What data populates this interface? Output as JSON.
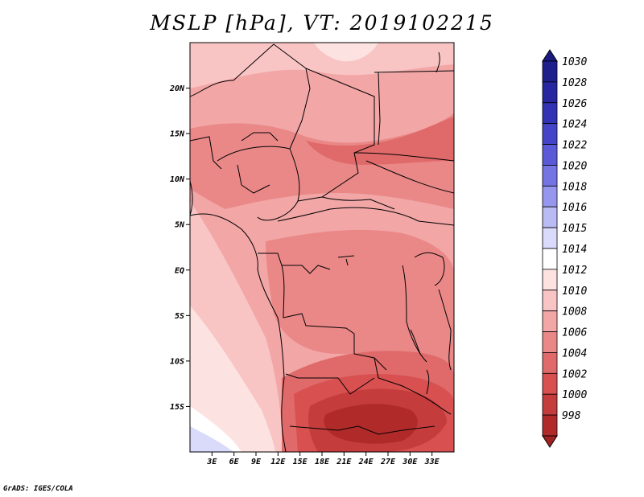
{
  "title": "MSLP [hPa], VT: 2019102215",
  "credit": "GrADS: IGES/COLA",
  "map": {
    "lon_range": [
      0,
      36
    ],
    "lat_range": [
      -20,
      25
    ],
    "lat_ticks": [
      {
        "value": 20,
        "label": "20N"
      },
      {
        "value": 15,
        "label": "15N"
      },
      {
        "value": 10,
        "label": "10N"
      },
      {
        "value": 5,
        "label": "5N"
      },
      {
        "value": 0,
        "label": "EQ"
      },
      {
        "value": -5,
        "label": "5S"
      },
      {
        "value": -10,
        "label": "10S"
      },
      {
        "value": -15,
        "label": "15S"
      }
    ],
    "lon_ticks": [
      {
        "value": 3,
        "label": "3E"
      },
      {
        "value": 6,
        "label": "6E"
      },
      {
        "value": 9,
        "label": "9E"
      },
      {
        "value": 12,
        "label": "12E"
      },
      {
        "value": 15,
        "label": "15E"
      },
      {
        "value": 18,
        "label": "18E"
      },
      {
        "value": 21,
        "label": "21E"
      },
      {
        "value": 24,
        "label": "24E"
      },
      {
        "value": 27,
        "label": "27E"
      },
      {
        "value": 30,
        "label": "30E"
      },
      {
        "value": 33,
        "label": "33E"
      }
    ]
  },
  "colorbar": {
    "levels": [
      {
        "label": "1030",
        "color": "#1e1e8c"
      },
      {
        "label": "1028",
        "color": "#2626a0"
      },
      {
        "label": "1026",
        "color": "#3232b4"
      },
      {
        "label": "1024",
        "color": "#4444c8"
      },
      {
        "label": "1022",
        "color": "#5a5ad8"
      },
      {
        "label": "1020",
        "color": "#7474e4"
      },
      {
        "label": "1018",
        "color": "#9696ee"
      },
      {
        "label": "1016",
        "color": "#babaf5"
      },
      {
        "label": "1015",
        "color": "#dadafa"
      },
      {
        "label": "1014",
        "color": "#ffffff"
      },
      {
        "label": "1012",
        "color": "#fde2e2"
      },
      {
        "label": "1010",
        "color": "#f9c4c4"
      },
      {
        "label": "1008",
        "color": "#f2a6a6"
      },
      {
        "label": "1006",
        "color": "#ea8888"
      },
      {
        "label": "1004",
        "color": "#e06a6a"
      },
      {
        "label": "1002",
        "color": "#d85050"
      },
      {
        "label": "1000",
        "color": "#c43c3c"
      },
      {
        "label": "998",
        "color": "#b02a2a"
      }
    ],
    "top_color": "#1a1a80",
    "bottom_color": "#a02222"
  }
}
